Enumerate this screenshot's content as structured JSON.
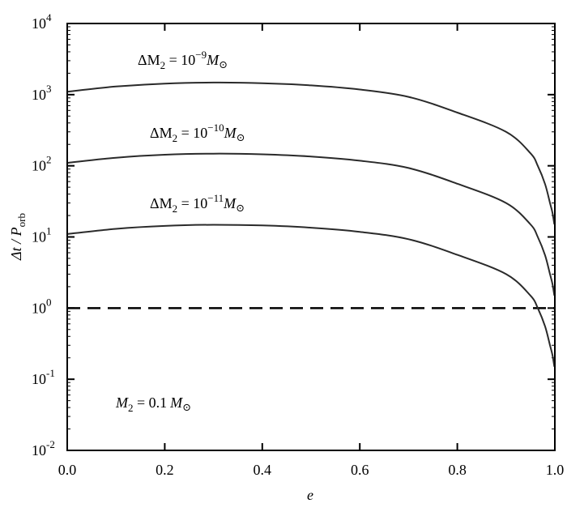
{
  "chart_data": {
    "type": "line",
    "xlabel": "e",
    "ylabel": "Δt / P_orb",
    "ylabel_parts": {
      "main": "Δt / P",
      "sub": "orb"
    },
    "xlim": [
      0,
      1
    ],
    "ylim": [
      0.01,
      10000
    ],
    "yscale": "log",
    "grid": false,
    "x_ticks": [
      "0.0",
      "0.2",
      "0.4",
      "0.6",
      "0.8",
      "1.0"
    ],
    "y_ticks": [
      {
        "base": "10",
        "exp": "-2"
      },
      {
        "base": "10",
        "exp": "-1"
      },
      {
        "base": "10",
        "exp": "0"
      },
      {
        "base": "10",
        "exp": "1"
      },
      {
        "base": "10",
        "exp": "2"
      },
      {
        "base": "10",
        "exp": "3"
      },
      {
        "base": "10",
        "exp": "4"
      }
    ],
    "x": [
      0,
      0.1,
      0.2,
      0.3,
      0.4,
      0.5,
      0.6,
      0.7,
      0.8,
      0.9,
      0.95,
      0.965,
      0.98,
      0.99,
      0.995,
      0.999
    ],
    "series": [
      {
        "name": "ΔM2 = 10^-9 M⊙",
        "label": {
          "pre": "ΔM",
          "sub": "2",
          "mid": " = 10",
          "exp": "−9",
          "post": "M",
          "sym": "⊙"
        },
        "values": [
          1100,
          1300,
          1430,
          1480,
          1450,
          1350,
          1180,
          930,
          560,
          300,
          150,
          100,
          55,
          30,
          22,
          15
        ]
      },
      {
        "name": "ΔM2 = 10^-10 M⊙",
        "label": {
          "pre": "ΔM",
          "sub": "2",
          "mid": " = 10",
          "exp": "−10",
          "post": "M",
          "sym": "⊙"
        },
        "values": [
          110,
          130,
          143,
          148,
          145,
          135,
          118,
          93,
          56,
          30,
          15,
          10,
          5.5,
          3.0,
          2.2,
          1.5
        ]
      },
      {
        "name": "ΔM2 = 10^-11 M⊙",
        "label": {
          "pre": "ΔM",
          "sub": "2",
          "mid": " = 10",
          "exp": "−11",
          "post": "M",
          "sym": "⊙"
        },
        "values": [
          11,
          13,
          14.3,
          14.8,
          14.5,
          13.5,
          11.8,
          9.3,
          5.6,
          3.0,
          1.5,
          1.0,
          0.55,
          0.3,
          0.22,
          0.15
        ]
      }
    ],
    "reference_line": {
      "y": 1,
      "style": "dashed"
    },
    "annotation": {
      "pre": "M",
      "sub": "2",
      "mid": " = 0.1",
      "post": "M",
      "sym": "⊙"
    },
    "colors": {
      "curves": "#2a2a2a",
      "axes": "#000000"
    }
  }
}
